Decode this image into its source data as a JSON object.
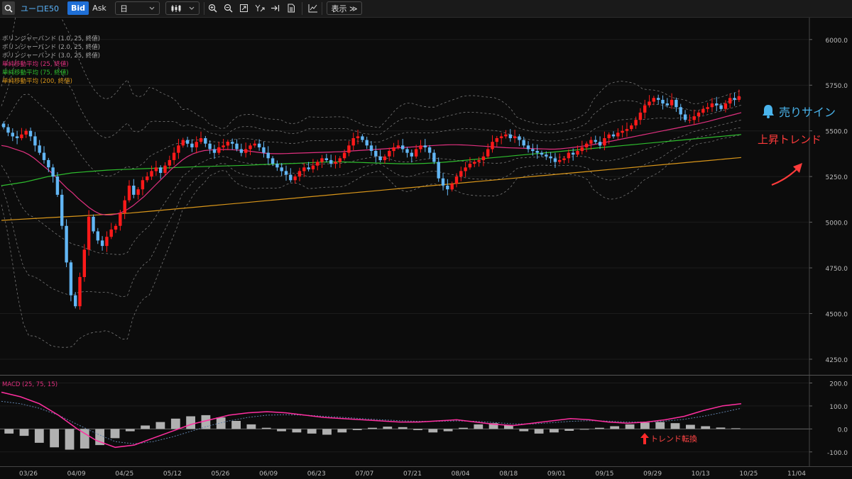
{
  "toolbar": {
    "symbol": "ユーロE50",
    "bid_label": "Bid",
    "ask_label": "Ask",
    "period": "日",
    "show_label": "表示 ≫"
  },
  "legend": {
    "bb1": "ボリンジャーバンド (1.0, 25, 終値)",
    "bb2": "ボリンジャーバンド (2.0, 25, 終値)",
    "bb3": "ボリンジャーバンド (3.0, 25, 終値)",
    "sma25": "単純移動平均 (25, 終値)",
    "sma75": "単純移動平均 (75, 終値)",
    "sma200": "単純移動平均 (200, 終値)",
    "macd": "MACD (25, 75, 15)"
  },
  "annotations": {
    "sell_sign": "売りサイン",
    "uptrend": "上昇トレンド",
    "trend_reversal": "トレンド転換"
  },
  "colors": {
    "up_candle": "#ff1a1a",
    "down_candle": "#62b6f4",
    "sma25": "#e0307f",
    "sma75": "#2ebd2e",
    "sma200": "#d9961a",
    "bollinger": "#777777",
    "macd_line": "#ff2fa0",
    "macd_hist": "#b0b0b0",
    "accent": "#1f6fd6"
  },
  "chart_data": [
    {
      "type": "candlestick",
      "y_ticks": [
        "6000.0",
        "5750.0",
        "5500.0",
        "5250.0",
        "5000.0",
        "4750.0",
        "4500.0",
        "4250.0"
      ],
      "ylim": [
        4180,
        6100
      ],
      "x_ticks": [
        "03/26",
        "04/09",
        "04/25",
        "05/12",
        "05/26",
        "06/09",
        "06/23",
        "07/07",
        "07/21",
        "08/04",
        "08/18",
        "09/01",
        "09/15",
        "09/29",
        "10/13",
        "10/25",
        "11/04"
      ],
      "closes": [
        5520,
        5490,
        5470,
        5460,
        5480,
        5500,
        5470,
        5420,
        5380,
        5340,
        5300,
        5250,
        5150,
        4980,
        4780,
        4600,
        4540,
        4700,
        4850,
        5030,
        4950,
        4900,
        4870,
        4920,
        4960,
        4980,
        5050,
        5120,
        5200,
        5150,
        5180,
        5230,
        5250,
        5280,
        5300,
        5270,
        5310,
        5340,
        5380,
        5420,
        5450,
        5430,
        5410,
        5440,
        5460,
        5430,
        5400,
        5380,
        5410,
        5420,
        5440,
        5430,
        5400,
        5380,
        5400,
        5420,
        5430,
        5410,
        5380,
        5350,
        5320,
        5300,
        5280,
        5260,
        5230,
        5250,
        5280,
        5300,
        5290,
        5310,
        5330,
        5350,
        5340,
        5320,
        5330,
        5350,
        5380,
        5420,
        5460,
        5470,
        5450,
        5420,
        5390,
        5360,
        5340,
        5360,
        5390,
        5410,
        5420,
        5400,
        5380,
        5360,
        5400,
        5420,
        5410,
        5380,
        5330,
        5240,
        5200,
        5180,
        5210,
        5250,
        5280,
        5300,
        5320,
        5330,
        5340,
        5360,
        5400,
        5440,
        5460,
        5470,
        5480,
        5460,
        5470,
        5450,
        5420,
        5400,
        5390,
        5380,
        5370,
        5360,
        5350,
        5330,
        5340,
        5350,
        5380,
        5370,
        5390,
        5410,
        5430,
        5450,
        5440,
        5420,
        5460,
        5480,
        5470,
        5490,
        5500,
        5510,
        5530,
        5560,
        5600,
        5640,
        5660,
        5680,
        5670,
        5650,
        5640,
        5670,
        5630,
        5590,
        5560,
        5560,
        5580,
        5600,
        5620,
        5630,
        5650,
        5640,
        5620,
        5650,
        5680,
        5670,
        5690
      ],
      "sma25": [
        5420,
        5415,
        5405,
        5395,
        5385,
        5370,
        5350,
        5325,
        5300,
        5275,
        5245,
        5215,
        5185,
        5160,
        5130,
        5105,
        5080,
        5060,
        5045,
        5040,
        5040,
        5045,
        5055,
        5070,
        5090,
        5115,
        5140,
        5170,
        5200,
        5230,
        5260,
        5290,
        5315,
        5340,
        5360,
        5375,
        5385,
        5392,
        5395,
        5397,
        5398,
        5398,
        5397,
        5395,
        5393,
        5390,
        5386,
        5382,
        5378,
        5376,
        5375,
        5375,
        5376,
        5377,
        5378,
        5379,
        5380,
        5381,
        5382,
        5383,
        5384,
        5385,
        5386,
        5388,
        5390,
        5392,
        5394,
        5396,
        5398,
        5400,
        5402,
        5404,
        5406,
        5408,
        5410,
        5412,
        5414,
        5416,
        5418,
        5420,
        5422,
        5423,
        5424,
        5424,
        5423,
        5422,
        5420,
        5418,
        5416,
        5414,
        5412,
        5410,
        5408,
        5407,
        5406,
        5405,
        5404,
        5403,
        5402,
        5401,
        5400,
        5400,
        5402,
        5405,
        5408,
        5412,
        5416,
        5420,
        5425,
        5430,
        5436,
        5442,
        5448,
        5454,
        5460,
        5466,
        5472,
        5478,
        5484,
        5490,
        5496,
        5502,
        5508,
        5514,
        5520,
        5526,
        5532,
        5538,
        5545,
        5552,
        5560,
        5568,
        5576,
        5584,
        5592,
        5600
      ],
      "sma75": [
        5200,
        5210,
        5220,
        5235,
        5250,
        5260,
        5270,
        5275,
        5280,
        5285,
        5288,
        5290,
        5293,
        5295,
        5297,
        5300,
        5302,
        5304,
        5306,
        5308,
        5310,
        5312,
        5315,
        5318,
        5320,
        5322,
        5325,
        5328,
        5330,
        5330,
        5328,
        5326,
        5324,
        5322,
        5320,
        5320,
        5322,
        5325,
        5330,
        5336,
        5342,
        5348,
        5354,
        5360,
        5366,
        5372,
        5378,
        5384,
        5390,
        5396,
        5402,
        5408,
        5414,
        5420,
        5426,
        5432,
        5438,
        5444,
        5450,
        5456,
        5462,
        5468,
        5474,
        5480
      ],
      "sma200": [
        5010,
        5015,
        5020,
        5025,
        5030,
        5035,
        5040,
        5045,
        5050,
        5058,
        5066,
        5074,
        5082,
        5090,
        5098,
        5106,
        5114,
        5122,
        5130,
        5138,
        5146,
        5154,
        5162,
        5170,
        5178,
        5186,
        5194,
        5202,
        5210,
        5218,
        5226,
        5234,
        5242,
        5250,
        5258,
        5266,
        5274,
        5282,
        5290,
        5298,
        5306,
        5314,
        5322,
        5330,
        5338,
        5346,
        5354
      ]
    },
    {
      "type": "macd",
      "y_ticks": [
        "200.0",
        "100.0",
        "0.0",
        "-100.0"
      ],
      "ylim": [
        -150,
        220
      ],
      "macd": [
        160,
        140,
        110,
        60,
        0,
        -50,
        -80,
        -70,
        -40,
        -10,
        20,
        40,
        60,
        70,
        75,
        70,
        60,
        50,
        45,
        40,
        35,
        30,
        30,
        35,
        40,
        30,
        20,
        15,
        25,
        35,
        45,
        40,
        30,
        25,
        30,
        40,
        55,
        80,
        100,
        110
      ],
      "signal": [
        120,
        110,
        90,
        60,
        20,
        -20,
        -55,
        -65,
        -55,
        -35,
        -10,
        15,
        35,
        50,
        60,
        62,
        60,
        55,
        50,
        45,
        40,
        36,
        33,
        33,
        35,
        33,
        28,
        22,
        22,
        27,
        33,
        36,
        34,
        30,
        30,
        34,
        42,
        55,
        72,
        90
      ],
      "histogram": [
        -20,
        -30,
        -60,
        -80,
        -90,
        -85,
        -70,
        -40,
        -10,
        15,
        30,
        45,
        55,
        60,
        50,
        35,
        20,
        5,
        -10,
        -15,
        -20,
        -25,
        -15,
        -5,
        5,
        10,
        8,
        -5,
        -15,
        -10,
        5,
        20,
        25,
        15,
        -10,
        -20,
        -15,
        -8,
        -3,
        5,
        12,
        20,
        28,
        30,
        25,
        18,
        12,
        6,
        3
      ]
    }
  ]
}
